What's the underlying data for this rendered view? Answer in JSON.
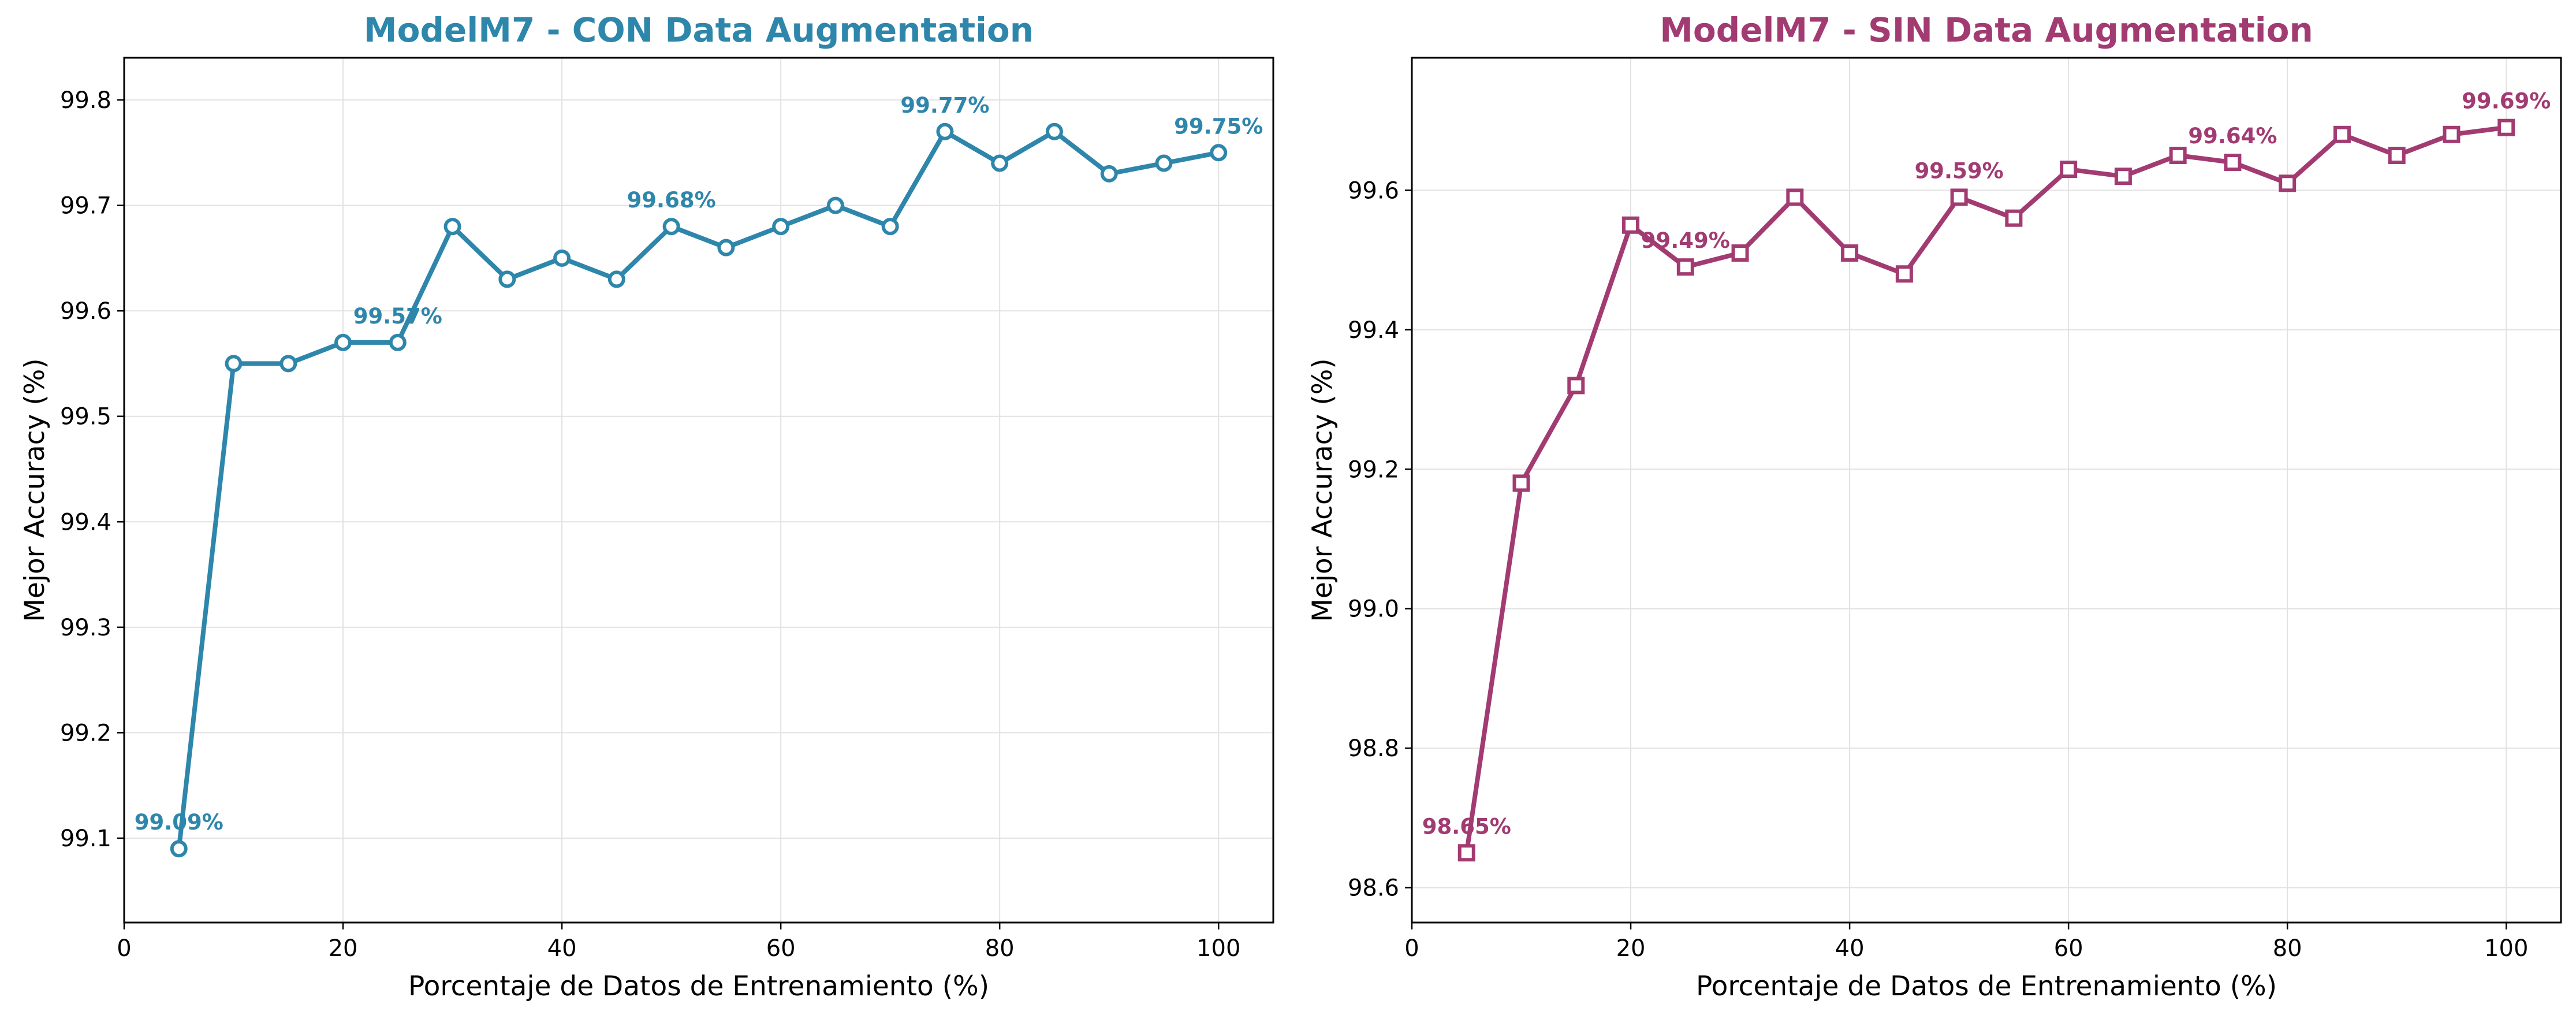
{
  "chart_data": [
    {
      "type": "line",
      "title": "ModelM7 - CON Data Augmentation",
      "xlabel": "Porcentaje de Datos de Entrenamiento (%)",
      "ylabel": "Mejor Accuracy (%)",
      "color": "#2e86ab",
      "marker": "circle",
      "xlim": [
        0,
        105
      ],
      "ylim": [
        99.02,
        99.84
      ],
      "xticks": [
        0,
        20,
        40,
        60,
        80,
        100
      ],
      "yticks": [
        99.1,
        99.2,
        99.3,
        99.4,
        99.5,
        99.6,
        99.7,
        99.8
      ],
      "ytick_labels": [
        "99.1",
        "99.2",
        "99.3",
        "99.4",
        "99.5",
        "99.6",
        "99.7",
        "99.8"
      ],
      "grid": true,
      "x": [
        5,
        10,
        15,
        20,
        25,
        30,
        35,
        40,
        45,
        50,
        55,
        60,
        65,
        70,
        75,
        80,
        85,
        90,
        95,
        100
      ],
      "y": [
        99.09,
        99.55,
        99.55,
        99.57,
        99.57,
        99.68,
        99.63,
        99.65,
        99.63,
        99.68,
        99.66,
        99.68,
        99.7,
        99.68,
        99.77,
        99.74,
        99.77,
        99.73,
        99.74,
        99.75
      ],
      "annotations": [
        {
          "x": 5,
          "y": 99.09,
          "text": "99.09%"
        },
        {
          "x": 25,
          "y": 99.57,
          "text": "99.57%"
        },
        {
          "x": 50,
          "y": 99.68,
          "text": "99.68%"
        },
        {
          "x": 75,
          "y": 99.77,
          "text": "99.77%"
        },
        {
          "x": 100,
          "y": 99.75,
          "text": "99.75%"
        }
      ]
    },
    {
      "type": "line",
      "title": "ModelM7 - SIN Data Augmentation",
      "xlabel": "Porcentaje de Datos de Entrenamiento (%)",
      "ylabel": "Mejor Accuracy (%)",
      "color": "#a23b72",
      "marker": "square",
      "xlim": [
        0,
        105
      ],
      "ylim": [
        98.55,
        99.79
      ],
      "xticks": [
        0,
        20,
        40,
        60,
        80,
        100
      ],
      "yticks": [
        98.6,
        98.8,
        99.0,
        99.2,
        99.4,
        99.6
      ],
      "ytick_labels": [
        "98.6",
        "98.8",
        "99.0",
        "99.2",
        "99.4",
        "99.6"
      ],
      "grid": true,
      "x": [
        5,
        10,
        15,
        20,
        25,
        30,
        35,
        40,
        45,
        50,
        55,
        60,
        65,
        70,
        75,
        80,
        85,
        90,
        95,
        100
      ],
      "y": [
        98.65,
        99.18,
        99.32,
        99.55,
        99.49,
        99.51,
        99.59,
        99.51,
        99.48,
        99.59,
        99.56,
        99.63,
        99.62,
        99.65,
        99.64,
        99.61,
        99.68,
        99.65,
        99.68,
        99.69
      ],
      "annotations": [
        {
          "x": 5,
          "y": 98.65,
          "text": "98.65%"
        },
        {
          "x": 25,
          "y": 99.49,
          "text": "99.49%"
        },
        {
          "x": 50,
          "y": 99.59,
          "text": "99.59%"
        },
        {
          "x": 75,
          "y": 99.64,
          "text": "99.64%"
        },
        {
          "x": 100,
          "y": 99.69,
          "text": "99.69%"
        }
      ]
    }
  ]
}
